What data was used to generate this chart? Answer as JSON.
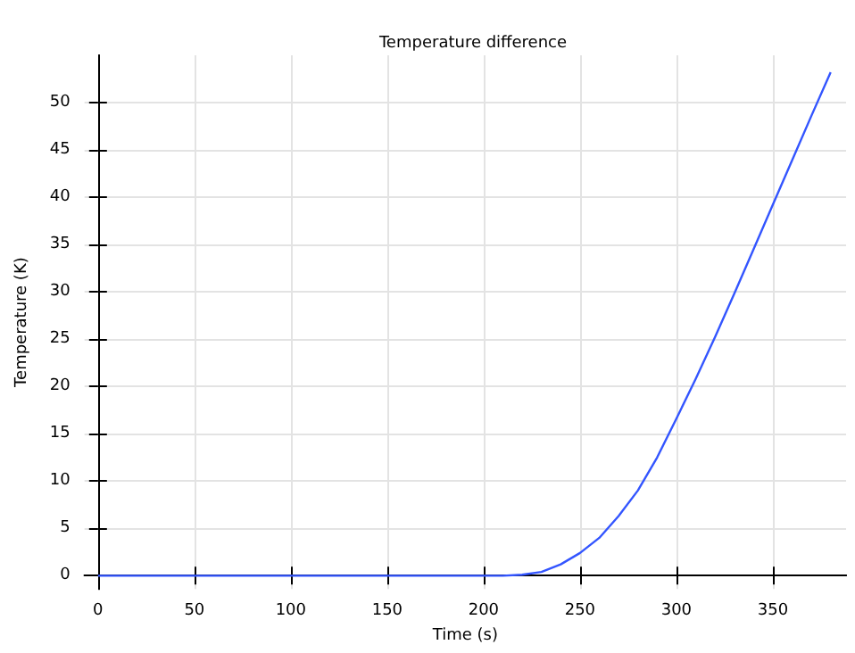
{
  "chart_data": {
    "type": "line",
    "title": "Temperature difference",
    "xlabel": "Time (s)",
    "ylabel": "Temperature (K)",
    "x": [
      0,
      50,
      100,
      150,
      200,
      210,
      220,
      230,
      240,
      250,
      260,
      270,
      280,
      290,
      300,
      310,
      320,
      330,
      340,
      350,
      360,
      370,
      380
    ],
    "series": [
      {
        "color": "#3355ff",
        "values": [
          0,
          0,
          0,
          0,
          0,
          0,
          0.1,
          0.4,
          1.2,
          2.4,
          4,
          6.3,
          9,
          12.5,
          16.6,
          20.8,
          25.2,
          29.8,
          34.5,
          39.2,
          43.9,
          48.6,
          53.2
        ]
      }
    ],
    "xlim": [
      -7,
      388
    ],
    "xticks": [
      0,
      50,
      100,
      150,
      200,
      250,
      300,
      350
    ],
    "ylim": [
      -1.4,
      55
    ],
    "yticks": [
      0,
      5,
      10,
      15,
      20,
      25,
      30,
      35,
      40,
      45,
      50
    ],
    "grid": true,
    "marker": "none",
    "line_style": "solid"
  }
}
